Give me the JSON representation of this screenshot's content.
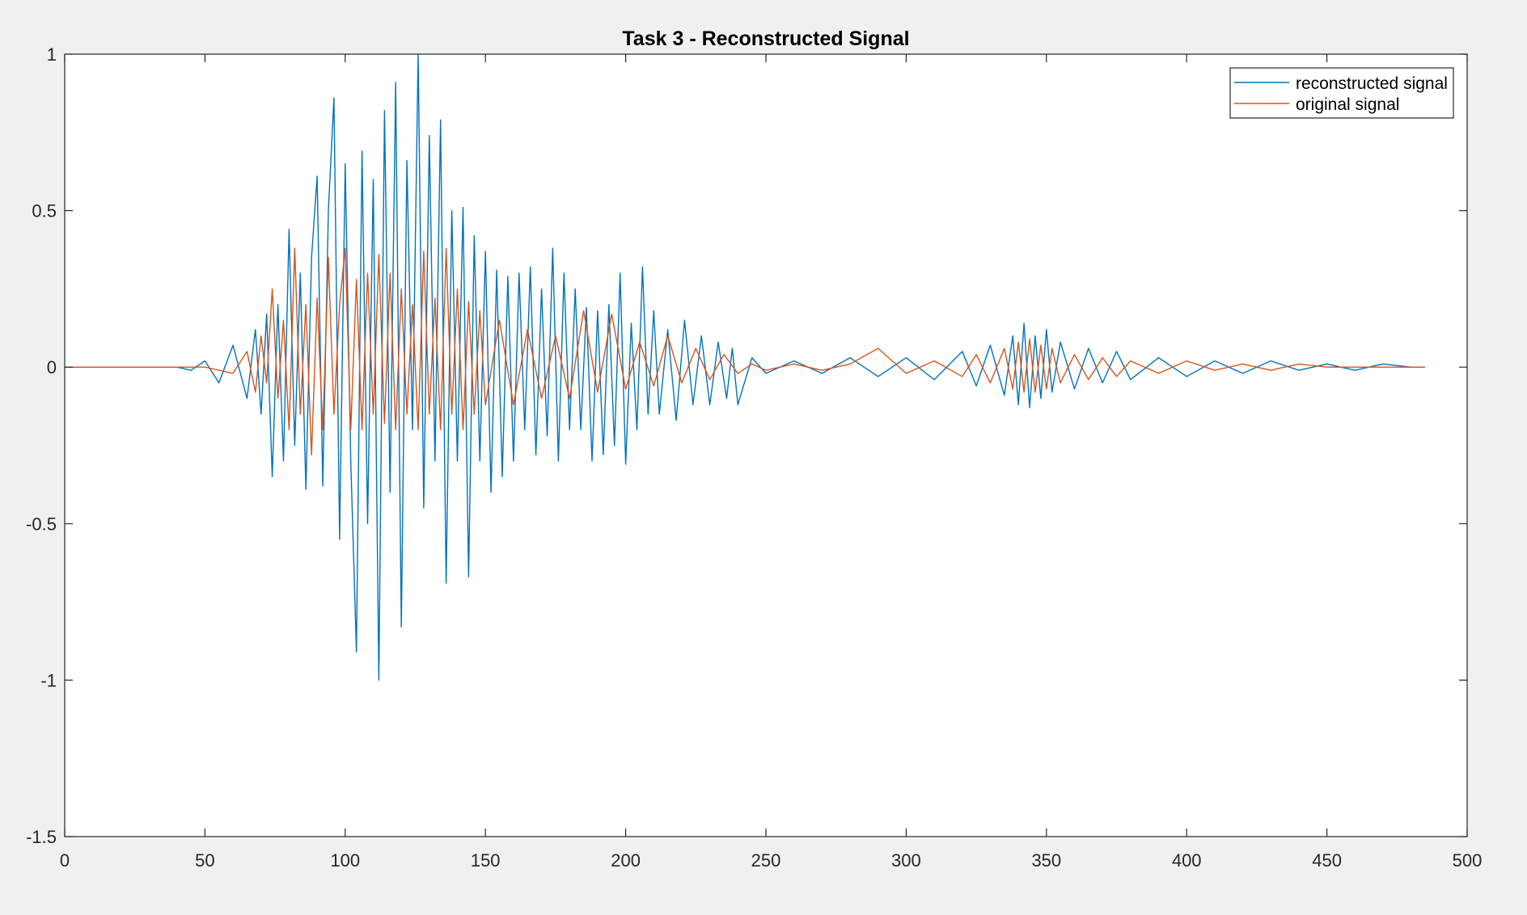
{
  "chart_data": {
    "type": "line",
    "title": "Task 3 - Reconstructed Signal",
    "xlabel": "",
    "ylabel": "",
    "xlim": [
      0,
      500
    ],
    "ylim": [
      -1.5,
      1
    ],
    "xticks": [
      "0",
      "50",
      "100",
      "150",
      "200",
      "250",
      "300",
      "350",
      "400",
      "450",
      "500"
    ],
    "yticks": [
      "1",
      "0.5",
      "0",
      "-0.5",
      "-1",
      "-1.5"
    ],
    "grid": false,
    "legend_position": "top-right",
    "series": [
      {
        "name": "reconstructed signal",
        "color": "#0072BD",
        "x": [
          0,
          40,
          45,
          50,
          55,
          60,
          65,
          68,
          70,
          72,
          74,
          76,
          78,
          80,
          82,
          84,
          86,
          88,
          90,
          92,
          94,
          96,
          98,
          100,
          102,
          104,
          106,
          108,
          110,
          112,
          114,
          116,
          118,
          120,
          122,
          124,
          126,
          128,
          130,
          132,
          134,
          136,
          138,
          140,
          142,
          144,
          146,
          148,
          150,
          152,
          154,
          156,
          158,
          160,
          162,
          164,
          166,
          168,
          170,
          172,
          174,
          176,
          178,
          180,
          182,
          184,
          186,
          188,
          190,
          192,
          194,
          196,
          198,
          200,
          202,
          204,
          206,
          208,
          210,
          212,
          215,
          218,
          221,
          224,
          227,
          230,
          233,
          236,
          238,
          240,
          245,
          250,
          260,
          270,
          280,
          290,
          300,
          310,
          320,
          325,
          330,
          335,
          338,
          340,
          342,
          344,
          346,
          348,
          350,
          352,
          355,
          360,
          365,
          370,
          375,
          380,
          390,
          400,
          410,
          420,
          430,
          440,
          450,
          460,
          470,
          480,
          485
        ],
        "y": [
          0,
          0,
          -0.01,
          0.02,
          -0.05,
          0.07,
          -0.1,
          0.12,
          -0.15,
          0.17,
          -0.35,
          0.2,
          -0.3,
          0.44,
          -0.25,
          0.3,
          -0.39,
          0.35,
          0.61,
          -0.38,
          0.5,
          0.86,
          -0.55,
          0.65,
          -0.3,
          -0.91,
          0.69,
          -0.5,
          0.6,
          -1.0,
          0.82,
          -0.4,
          0.91,
          -0.83,
          0.66,
          -0.2,
          1.0,
          -0.45,
          0.74,
          -0.3,
          0.79,
          -0.69,
          0.5,
          -0.3,
          0.51,
          -0.67,
          0.42,
          -0.3,
          0.37,
          -0.4,
          0.31,
          -0.35,
          0.29,
          -0.3,
          0.3,
          -0.2,
          0.32,
          -0.28,
          0.25,
          -0.22,
          0.38,
          -0.3,
          0.3,
          -0.2,
          0.25,
          -0.2,
          0.19,
          -0.3,
          0.18,
          -0.28,
          0.2,
          -0.25,
          0.3,
          -0.31,
          0.14,
          -0.2,
          0.32,
          -0.15,
          0.18,
          -0.15,
          0.12,
          -0.17,
          0.15,
          -0.12,
          0.1,
          -0.12,
          0.08,
          -0.1,
          0.06,
          -0.12,
          0.03,
          -0.02,
          0.02,
          -0.02,
          0.03,
          -0.03,
          0.03,
          -0.04,
          0.05,
          -0.06,
          0.07,
          -0.09,
          0.1,
          -0.12,
          0.14,
          -0.13,
          0.1,
          -0.1,
          0.12,
          -0.08,
          0.08,
          -0.07,
          0.06,
          -0.05,
          0.05,
          -0.04,
          0.03,
          -0.03,
          0.02,
          -0.02,
          0.02,
          -0.01,
          0.01,
          -0.01,
          0.01,
          0,
          0
        ]
      },
      {
        "name": "original signal",
        "color": "#D95319",
        "x": [
          0,
          50,
          60,
          65,
          68,
          70,
          72,
          74,
          76,
          78,
          80,
          82,
          84,
          86,
          88,
          90,
          92,
          94,
          96,
          98,
          100,
          102,
          104,
          106,
          108,
          110,
          112,
          114,
          116,
          118,
          120,
          122,
          124,
          126,
          128,
          130,
          132,
          134,
          136,
          138,
          140,
          142,
          144,
          146,
          148,
          150,
          155,
          160,
          165,
          170,
          175,
          180,
          185,
          190,
          195,
          200,
          205,
          210,
          215,
          220,
          225,
          230,
          235,
          240,
          245,
          250,
          260,
          270,
          280,
          290,
          300,
          310,
          320,
          325,
          330,
          335,
          338,
          340,
          342,
          344,
          346,
          348,
          350,
          352,
          355,
          360,
          365,
          370,
          375,
          380,
          390,
          400,
          410,
          420,
          430,
          440,
          450,
          460,
          470,
          480,
          485
        ],
        "y": [
          0,
          0,
          -0.02,
          0.05,
          -0.08,
          0.1,
          -0.05,
          0.25,
          -0.1,
          0.15,
          -0.2,
          0.38,
          -0.15,
          0.2,
          -0.28,
          0.22,
          -0.2,
          0.35,
          -0.15,
          0.2,
          0.38,
          -0.2,
          0.28,
          -0.2,
          0.3,
          -0.15,
          0.36,
          -0.18,
          0.3,
          -0.2,
          0.25,
          -0.15,
          0.2,
          -0.2,
          0.37,
          -0.15,
          0.22,
          -0.2,
          0.38,
          -0.15,
          0.25,
          -0.2,
          0.21,
          -0.15,
          0.18,
          -0.12,
          0.15,
          -0.12,
          0.12,
          -0.1,
          0.1,
          -0.1,
          0.18,
          -0.08,
          0.17,
          -0.07,
          0.08,
          -0.06,
          0.1,
          -0.05,
          0.06,
          -0.04,
          0.04,
          -0.02,
          0.01,
          -0.01,
          0.01,
          -0.01,
          0.01,
          0.06,
          -0.02,
          0.02,
          -0.03,
          0.04,
          -0.05,
          0.06,
          -0.07,
          0.08,
          -0.08,
          0.09,
          -0.08,
          0.07,
          -0.07,
          0.06,
          -0.05,
          0.04,
          -0.04,
          0.03,
          -0.03,
          0.02,
          -0.02,
          0.02,
          -0.01,
          0.01,
          -0.01,
          0.01,
          0,
          0,
          0,
          0,
          0
        ]
      }
    ]
  }
}
